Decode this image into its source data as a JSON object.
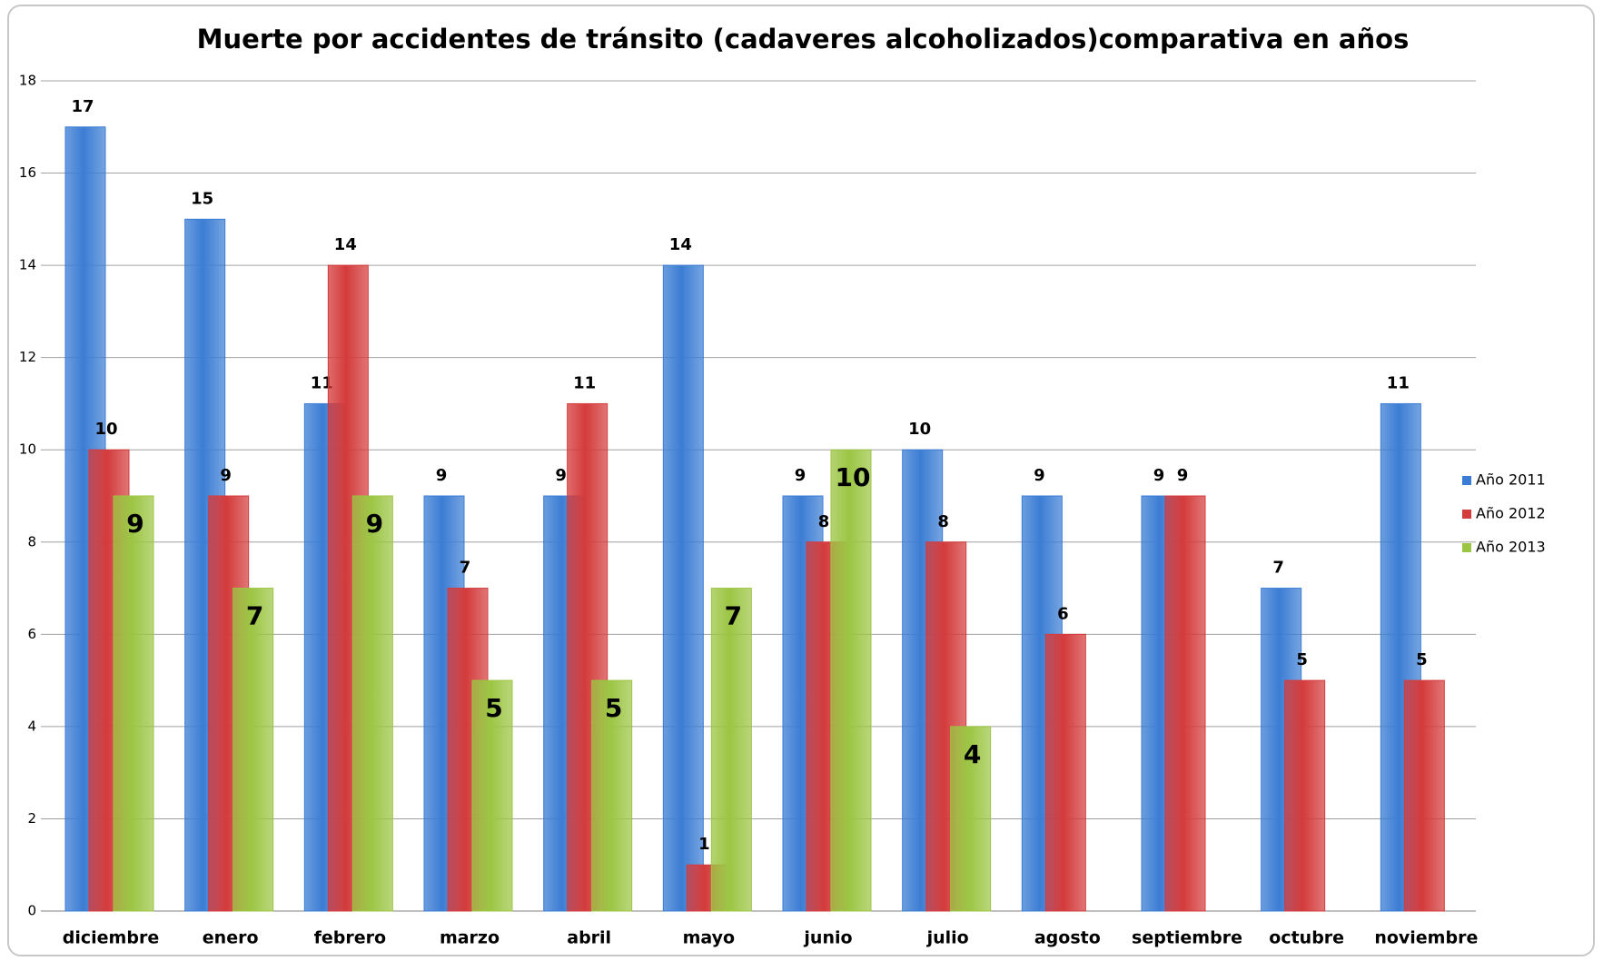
{
  "chart_data": {
    "type": "bar",
    "title": "Muerte por accidentes de tránsito (cadaveres alcoholizados)comparativa en años",
    "categories": [
      "diciembre",
      "enero",
      "febrero",
      "marzo",
      "abril",
      "mayo",
      "junio",
      "julio",
      "agosto",
      "septiembre",
      "octubre",
      "noviembre"
    ],
    "series": [
      {
        "name": "Año 2011",
        "color": "#3b7dd4",
        "values": [
          17,
          15,
          11,
          9,
          9,
          14,
          9,
          10,
          9,
          9,
          7,
          11
        ]
      },
      {
        "name": "Año 2012",
        "color": "#d43b3b",
        "values": [
          10,
          9,
          14,
          7,
          11,
          1,
          8,
          8,
          6,
          9,
          5,
          5
        ]
      },
      {
        "name": "Año 2013",
        "color": "#9cc543",
        "values": [
          9,
          7,
          9,
          5,
          5,
          7,
          10,
          4,
          null,
          null,
          null,
          null
        ]
      }
    ],
    "ylim": [
      0,
      18
    ],
    "yticks": [
      0,
      2,
      4,
      6,
      8,
      10,
      12,
      14,
      16,
      18
    ],
    "grid": true,
    "legend": "right"
  }
}
